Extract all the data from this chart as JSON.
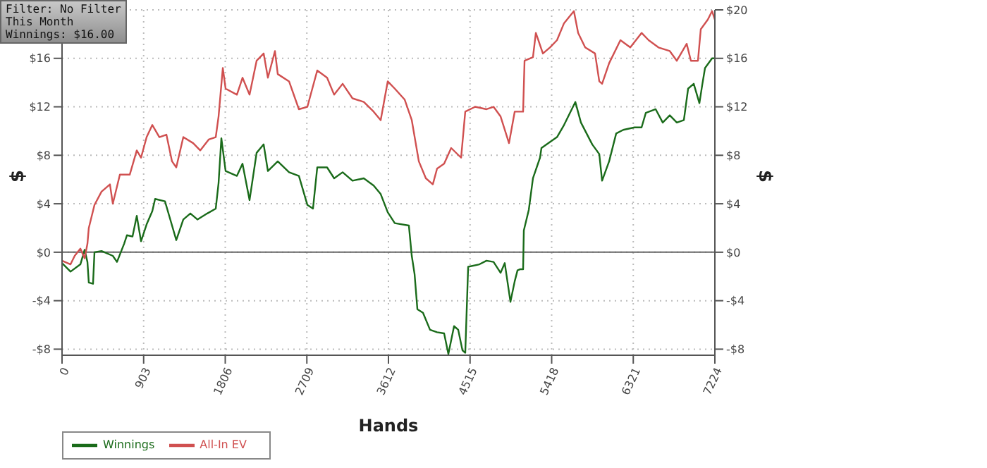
{
  "chart_data": {
    "type": "line",
    "xlabel": "Hands",
    "ylabel": "$",
    "y2label": "$",
    "annotations": [
      "Filter: No Filter",
      "This Month",
      "Winnings: $16.00"
    ],
    "xlim": [
      0,
      7224
    ],
    "xticks": [
      0,
      903,
      1806,
      2709,
      3612,
      4515,
      5418,
      6321,
      7224
    ],
    "ylim": [
      -8.5,
      20
    ],
    "yticks": [
      {
        "value": -8,
        "label": "-$8"
      },
      {
        "value": -4,
        "label": "-$4"
      },
      {
        "value": 0,
        "label": "$0"
      },
      {
        "value": 4,
        "label": "$4"
      },
      {
        "value": 8,
        "label": "$8"
      },
      {
        "value": 12,
        "label": "$12"
      },
      {
        "value": 16,
        "label": "$16"
      }
    ],
    "y2lim": [
      -8.5,
      20
    ],
    "y2ticks": [
      {
        "value": -8,
        "label": "-$8"
      },
      {
        "value": -4,
        "label": "-$4"
      },
      {
        "value": 0,
        "label": "$0"
      },
      {
        "value": 4,
        "label": "$4"
      },
      {
        "value": 8,
        "label": "$8"
      },
      {
        "value": 12,
        "label": "$12"
      },
      {
        "value": 16,
        "label": "$16"
      },
      {
        "value": 20,
        "label": "$20"
      }
    ],
    "grid": true,
    "legend": "bottom left",
    "marker": "none",
    "line_style": "solid",
    "ref_lines": [
      {
        "axis": "y",
        "value": 0,
        "color": "#666666"
      }
    ],
    "series": [
      {
        "name": "Winnings",
        "color": "#1a6b1a",
        "x": [
          0,
          94,
          203,
          250,
          281,
          296,
          343,
          359,
          437,
          562,
          608,
          687,
          718,
          780,
          827,
          874,
          936,
          999,
          1030,
          1139,
          1186,
          1264,
          1342,
          1420,
          1498,
          1607,
          1701,
          1732,
          1763,
          1810,
          1935,
          1997,
          2075,
          2153,
          2231,
          2278,
          2387,
          2512,
          2621,
          2715,
          2777,
          2824,
          2933,
          3011,
          3105,
          3214,
          3339,
          3448,
          3526,
          3604,
          3682,
          3838,
          3870,
          3901,
          3932,
          3994,
          4072,
          4150,
          4228,
          4275,
          4338,
          4384,
          4431,
          4462,
          4494,
          4618,
          4697,
          4775,
          4853,
          4899,
          4962,
          5009,
          5040,
          5071,
          5102,
          5110,
          5165,
          5211,
          5289,
          5305,
          5399,
          5477,
          5555,
          5680,
          5742,
          5867,
          5945,
          5976,
          6054,
          6132,
          6210,
          6335,
          6413,
          6460,
          6569,
          6647,
          6725,
          6803,
          6881,
          6928,
          6990,
          7053,
          7084,
          7115,
          7193,
          7224
        ],
        "values": [
          -0.9,
          -1.6,
          -1,
          0.2,
          -0.8,
          -2.5,
          -2.6,
          0,
          0.1,
          -0.3,
          -0.8,
          0.7,
          1.4,
          1.3,
          3,
          0.9,
          2.3,
          3.4,
          4.4,
          4.2,
          3,
          1,
          2.7,
          3.2,
          2.7,
          3.2,
          3.6,
          5.7,
          9.4,
          6.7,
          6.3,
          7.3,
          4.3,
          8.2,
          8.9,
          6.7,
          7.5,
          6.6,
          6.3,
          3.9,
          3.6,
          7,
          7,
          6.1,
          6.6,
          5.9,
          6.1,
          5.5,
          4.8,
          3.3,
          2.4,
          2.2,
          -0.3,
          -1.8,
          -4.7,
          -5,
          -6.4,
          -6.6,
          -6.7,
          -8.4,
          -6.1,
          -6.4,
          -8.1,
          -8.3,
          -1.2,
          -1,
          -0.7,
          -0.8,
          -1.7,
          -0.9,
          -4.1,
          -2.4,
          -1.5,
          -1.4,
          -1.4,
          1.8,
          3.5,
          6.1,
          7.8,
          8.6,
          9.1,
          9.5,
          10.5,
          12.4,
          10.7,
          8.9,
          8.1,
          5.9,
          7.5,
          9.8,
          10.1,
          10.3,
          10.3,
          11.5,
          11.8,
          10.7,
          11.3,
          10.7,
          10.9,
          13.5,
          13.9,
          12.3,
          13.8,
          15.2,
          16,
          16
        ]
      },
      {
        "name": "All-In EV",
        "color": "#d05050",
        "x": [
          0,
          94,
          140,
          203,
          250,
          281,
          296,
          359,
          437,
          530,
          562,
          640,
          749,
          827,
          874,
          936,
          999,
          1077,
          1155,
          1217,
          1264,
          1342,
          1451,
          1529,
          1623,
          1701,
          1732,
          1779,
          1810,
          1935,
          1997,
          2075,
          2153,
          2231,
          2278,
          2356,
          2387,
          2512,
          2621,
          2715,
          2824,
          2933,
          3011,
          3105,
          3214,
          3339,
          3448,
          3526,
          3604,
          3682,
          3791,
          3870,
          3948,
          4026,
          4103,
          4150,
          4228,
          4306,
          4416,
          4462,
          4572,
          4697,
          4775,
          4853,
          4946,
          5009,
          5102,
          5118,
          5211,
          5243,
          5321,
          5399,
          5477,
          5555,
          5664,
          5711,
          5789,
          5898,
          5945,
          5976,
          6054,
          6179,
          6288,
          6413,
          6491,
          6600,
          6725,
          6803,
          6912,
          6959,
          7037,
          7068,
          7146,
          7193,
          7224
        ],
        "values": [
          -0.7,
          -1,
          -0.3,
          0.3,
          -0.5,
          0.7,
          2,
          3.9,
          5,
          5.6,
          4,
          6.4,
          6.4,
          8.4,
          7.8,
          9.5,
          10.5,
          9.5,
          9.7,
          7.5,
          7,
          9.5,
          9,
          8.4,
          9.3,
          9.5,
          11.2,
          15.2,
          13.5,
          13,
          14.4,
          13,
          15.8,
          16.4,
          14.4,
          16.6,
          14.7,
          14.1,
          11.8,
          12,
          15,
          14.4,
          13,
          13.9,
          12.7,
          12.4,
          11.6,
          10.9,
          14.1,
          13.5,
          12.6,
          10.9,
          7.5,
          6.1,
          5.6,
          6.9,
          7.3,
          8.6,
          7.8,
          11.6,
          12,
          11.8,
          12,
          11.2,
          9,
          11.6,
          11.6,
          15.8,
          16.1,
          18.1,
          16.4,
          16.9,
          17.5,
          18.9,
          19.9,
          18.1,
          16.9,
          16.4,
          14.1,
          13.9,
          15.6,
          17.5,
          16.9,
          18.1,
          17.5,
          16.9,
          16.6,
          15.8,
          17.2,
          15.8,
          15.8,
          18.4,
          19.2,
          19.9,
          19.2
        ]
      }
    ]
  }
}
